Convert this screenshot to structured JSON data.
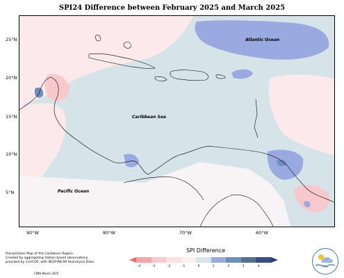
{
  "title": "SPI24 Difference between February 2025 and March 2025",
  "lat_labels": [
    "25°N",
    "20°N",
    "15°N",
    "10°N",
    "5°N"
  ],
  "lon_labels": [
    "90°W",
    "80°W",
    "70°W",
    "60°W"
  ],
  "regions": {
    "atlantic": "Atlantic Ocean",
    "caribbean": "Caribbean Sea",
    "pacific": "Pacific Ocean"
  },
  "legend": {
    "title": "SPI Difference",
    "ticks": [
      "-4",
      "-3",
      "-2",
      "-1",
      "0",
      "1",
      "2",
      "3",
      "4"
    ],
    "colors": [
      "#f3a5ac",
      "#f7c8cc",
      "#fae2e4",
      "#fbf0f1",
      "#d6e4ea",
      "#9aa9e0",
      "#6e8fbd",
      "#55708d",
      "#3b4a8a"
    ],
    "low_color": "#e56c77",
    "high_color": "#2a3b7a"
  },
  "footer": {
    "line1": "Precipitation Map of the Caribbean Region.",
    "line2": "Created by aggregating station based observations,",
    "line3": "provided by CariCOF, with NCEP/NCAR Reanalysis Data.",
    "credit": "CIMH March 2025"
  },
  "logo": {
    "text": "CIMH"
  }
}
